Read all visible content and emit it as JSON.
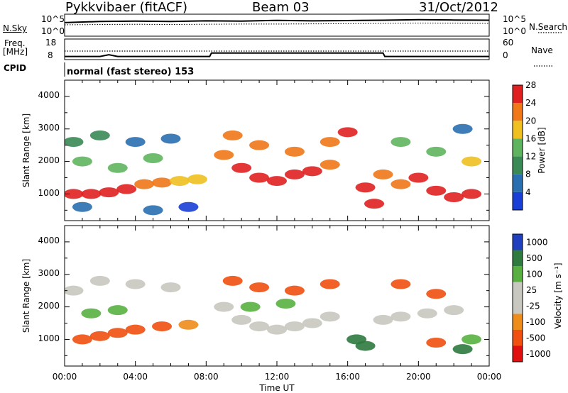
{
  "header": {
    "station": "Pykkvibaer (fitACF)",
    "beam": "Beam 03",
    "date": "31/Oct/2012"
  },
  "strips": {
    "nsky_label": "N.Sky",
    "nsky_ticks": [
      "10^5",
      "10^0"
    ],
    "nsearch_label": "N.Search",
    "nsearch_ticks": [
      "10^5",
      "10^0"
    ],
    "freq_label_1": "Freq.",
    "freq_label_2": "[MHz]",
    "freq_ticks": [
      "18",
      "8"
    ],
    "nave_label": "Nave",
    "nave_ticks": [
      "60",
      "0"
    ],
    "cpid_label": "CPID",
    "cpid_text": "normal (fast stereo) 153"
  },
  "panels": {
    "power": {
      "ylabel": "Slant Range [km]",
      "yticks": [
        "1000",
        "2000",
        "3000",
        "4000"
      ],
      "colorbar_label": "Power [dB]",
      "colorbar_ticks": [
        "4",
        "8",
        "12",
        "16",
        "20",
        "24",
        "28"
      ]
    },
    "velocity": {
      "ylabel": "Slant Range [km]",
      "yticks": [
        "1000",
        "2000",
        "3000",
        "4000"
      ],
      "colorbar_label": "Velocity [m s⁻¹]",
      "colorbar_ticks": [
        "1000",
        "500",
        "100",
        "25",
        "-25",
        "-100",
        "-500",
        "-1000"
      ]
    }
  },
  "xaxis": {
    "label": "Time UT",
    "ticks": [
      "00:00",
      "04:00",
      "08:00",
      "12:00",
      "16:00",
      "20:00",
      "00:00"
    ]
  },
  "colors": {
    "power_scale": [
      "#1a3fd6",
      "#2a6fb0",
      "#3a8a55",
      "#5fb55f",
      "#f0c020",
      "#f07818",
      "#e02020"
    ],
    "velocity_scale": [
      "#1f3fbf",
      "#2e7a3f",
      "#58b040",
      "#c8c8c0",
      "#c8c8c0",
      "#ee8c1c",
      "#f05010",
      "#e01010"
    ]
  },
  "chart_data": [
    {
      "type": "line",
      "title": "N.Sky / N.Search",
      "x": [
        0,
        2,
        4,
        6,
        8,
        10,
        12,
        14,
        16,
        18,
        20,
        22,
        24
      ],
      "series": [
        {
          "name": "N.Sky",
          "values": [
            2000,
            4000,
            5000,
            4000,
            6000,
            5000,
            8000,
            6000,
            7000,
            9000,
            12000,
            10000,
            9000
          ]
        },
        {
          "name": "N.Search",
          "values": [
            500,
            600,
            700,
            600,
            700,
            800,
            800,
            900,
            1000,
            1200,
            1500,
            1400,
            1200
          ]
        }
      ],
      "ylim": [
        1,
        100000
      ]
    },
    {
      "type": "line",
      "title": "Freq. / Nave",
      "x": [
        0,
        2,
        2.5,
        3,
        5,
        8.2,
        8.3,
        12,
        16,
        18,
        18.1,
        24
      ],
      "series": [
        {
          "name": "Freq.",
          "values": [
            9,
            9,
            10,
            9,
            9,
            9,
            11,
            11,
            11,
            11,
            9,
            9
          ]
        },
        {
          "name": "Nave",
          "values": [
            25,
            25,
            25,
            25,
            25,
            25,
            25,
            25,
            25,
            25,
            25,
            25
          ]
        }
      ],
      "ylim": [
        8,
        18
      ]
    },
    {
      "type": "heatmap",
      "title": "Power",
      "xlabel": "Time UT",
      "ylabel": "Slant Range [km]",
      "xlim": [
        0,
        24
      ],
      "ylim": [
        180,
        4500
      ],
      "zlim": [
        0,
        30
      ],
      "cells": [
        {
          "t": 0.5,
          "r": 1000,
          "v": 26
        },
        {
          "t": 1.5,
          "r": 1000,
          "v": 28
        },
        {
          "t": 2.5,
          "r": 1050,
          "v": 27
        },
        {
          "t": 3.5,
          "r": 1150,
          "v": 26
        },
        {
          "t": 4.5,
          "r": 1300,
          "v": 24
        },
        {
          "t": 5.5,
          "r": 1350,
          "v": 22
        },
        {
          "t": 6.5,
          "r": 1400,
          "v": 20
        },
        {
          "t": 7.5,
          "r": 1450,
          "v": 18
        },
        {
          "t": 0.5,
          "r": 2600,
          "v": 12
        },
        {
          "t": 2.0,
          "r": 2800,
          "v": 10
        },
        {
          "t": 4.0,
          "r": 2600,
          "v": 8
        },
        {
          "t": 6.0,
          "r": 2700,
          "v": 8
        },
        {
          "t": 1.0,
          "r": 2000,
          "v": 14
        },
        {
          "t": 3.0,
          "r": 1800,
          "v": 16
        },
        {
          "t": 5.0,
          "r": 2100,
          "v": 14
        },
        {
          "t": 1.0,
          "r": 600,
          "v": 6
        },
        {
          "t": 5.0,
          "r": 500,
          "v": 6
        },
        {
          "t": 7.0,
          "r": 600,
          "v": 4
        },
        {
          "t": 9.0,
          "r": 2200,
          "v": 24
        },
        {
          "t": 10.0,
          "r": 1800,
          "v": 26
        },
        {
          "t": 11.0,
          "r": 1500,
          "v": 28
        },
        {
          "t": 12.0,
          "r": 1400,
          "v": 28
        },
        {
          "t": 13.0,
          "r": 1600,
          "v": 27
        },
        {
          "t": 14.0,
          "r": 1700,
          "v": 26
        },
        {
          "t": 15.0,
          "r": 1900,
          "v": 25
        },
        {
          "t": 9.5,
          "r": 2800,
          "v": 22
        },
        {
          "t": 11.0,
          "r": 2500,
          "v": 24
        },
        {
          "t": 13.0,
          "r": 2300,
          "v": 25
        },
        {
          "t": 15.0,
          "r": 2600,
          "v": 24
        },
        {
          "t": 16.0,
          "r": 2900,
          "v": 26
        },
        {
          "t": 17.0,
          "r": 1200,
          "v": 27
        },
        {
          "t": 17.5,
          "r": 700,
          "v": 28
        },
        {
          "t": 18.0,
          "r": 1600,
          "v": 24
        },
        {
          "t": 19.0,
          "r": 1300,
          "v": 25
        },
        {
          "t": 20.0,
          "r": 1500,
          "v": 26
        },
        {
          "t": 21.0,
          "r": 1100,
          "v": 27
        },
        {
          "t": 22.0,
          "r": 900,
          "v": 28
        },
        {
          "t": 23.0,
          "r": 1000,
          "v": 27
        },
        {
          "t": 19.0,
          "r": 2600,
          "v": 14
        },
        {
          "t": 21.0,
          "r": 2300,
          "v": 16
        },
        {
          "t": 23.0,
          "r": 2000,
          "v": 18
        },
        {
          "t": 22.5,
          "r": 3000,
          "v": 8
        }
      ]
    },
    {
      "type": "heatmap",
      "title": "Velocity",
      "xlabel": "Time UT",
      "ylabel": "Slant Range [km]",
      "xlim": [
        0,
        24
      ],
      "ylim": [
        180,
        4500
      ],
      "zlim": [
        -1000,
        1000
      ],
      "cells": [
        {
          "t": 0.5,
          "r": 2500,
          "v": 0
        },
        {
          "t": 2.0,
          "r": 2800,
          "v": 0
        },
        {
          "t": 4.0,
          "r": 2700,
          "v": 0
        },
        {
          "t": 6.0,
          "r": 2600,
          "v": 0
        },
        {
          "t": 1.0,
          "r": 1000,
          "v": -200
        },
        {
          "t": 2.0,
          "r": 1100,
          "v": -300
        },
        {
          "t": 3.0,
          "r": 1200,
          "v": -250
        },
        {
          "t": 4.0,
          "r": 1300,
          "v": -200
        },
        {
          "t": 5.5,
          "r": 1400,
          "v": -150
        },
        {
          "t": 7.0,
          "r": 1450,
          "v": -100
        },
        {
          "t": 1.5,
          "r": 1800,
          "v": 300
        },
        {
          "t": 3.0,
          "r": 1900,
          "v": 200
        },
        {
          "t": 9.0,
          "r": 2000,
          "v": 0
        },
        {
          "t": 10.0,
          "r": 1600,
          "v": 0
        },
        {
          "t": 11.0,
          "r": 1400,
          "v": 0
        },
        {
          "t": 12.0,
          "r": 1300,
          "v": 0
        },
        {
          "t": 13.0,
          "r": 1400,
          "v": 0
        },
        {
          "t": 14.0,
          "r": 1500,
          "v": 0
        },
        {
          "t": 15.0,
          "r": 1700,
          "v": 0
        },
        {
          "t": 10.5,
          "r": 2000,
          "v": 400
        },
        {
          "t": 12.5,
          "r": 2100,
          "v": 300
        },
        {
          "t": 9.5,
          "r": 2800,
          "v": -300
        },
        {
          "t": 11.0,
          "r": 2600,
          "v": -400
        },
        {
          "t": 13.0,
          "r": 2500,
          "v": -300
        },
        {
          "t": 15.0,
          "r": 2700,
          "v": -400
        },
        {
          "t": 16.5,
          "r": 1000,
          "v": 600
        },
        {
          "t": 17.0,
          "r": 800,
          "v": 700
        },
        {
          "t": 18.0,
          "r": 1600,
          "v": 0
        },
        {
          "t": 19.0,
          "r": 1700,
          "v": 0
        },
        {
          "t": 20.5,
          "r": 1800,
          "v": 0
        },
        {
          "t": 22.0,
          "r": 1900,
          "v": 0
        },
        {
          "t": 21.0,
          "r": 900,
          "v": -500
        },
        {
          "t": 22.5,
          "r": 700,
          "v": 800
        },
        {
          "t": 23.0,
          "r": 1000,
          "v": 400
        },
        {
          "t": 19.0,
          "r": 2700,
          "v": -300
        },
        {
          "t": 21.0,
          "r": 2400,
          "v": -200
        }
      ]
    }
  ]
}
